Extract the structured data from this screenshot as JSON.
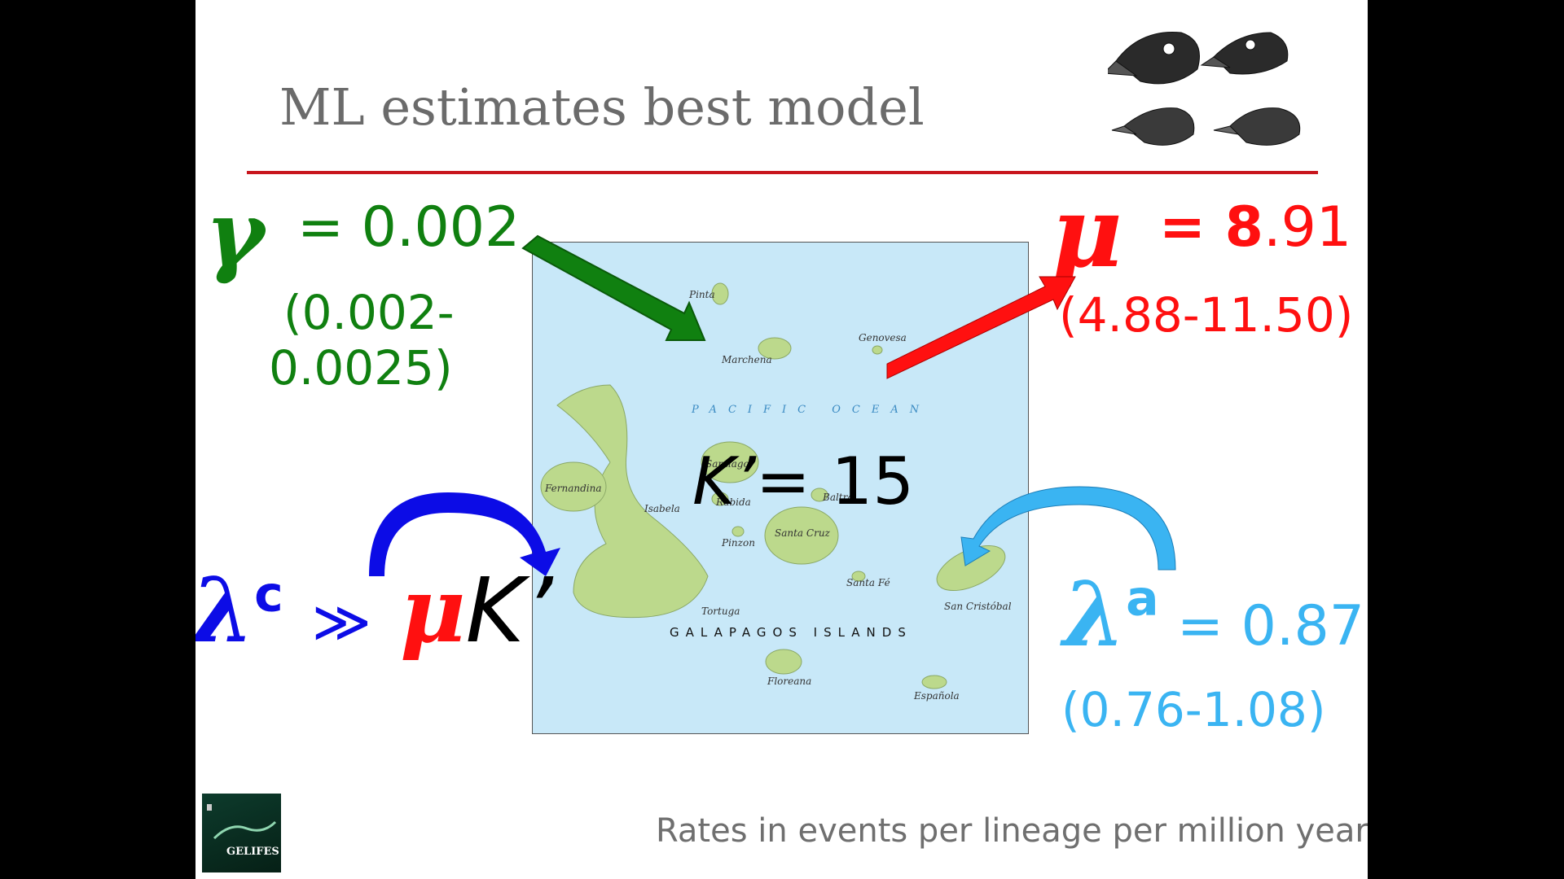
{
  "title": "ML estimates best model",
  "gamma": {
    "symbol": "γ",
    "eq": "= 0.002",
    "ci_line1": "(0.002-",
    "ci_line2": "0.0025)"
  },
  "mu": {
    "symbol": "μ",
    "eq_bold": "= 8",
    "eq_rest": ".91",
    "ci": "(4.88-11.50)"
  },
  "kprime": {
    "k": "K’",
    "eq": "= 15"
  },
  "lambda_c": {
    "symbol": "λ",
    "sup": "c",
    "rel": "≫",
    "mu": "μ",
    "k": "K’"
  },
  "lambda_a": {
    "symbol": "λ",
    "sup": "a",
    "eq": "= 0.87",
    "ci": "(0.76-1.08)"
  },
  "footer": "Rates in events per lineage per million year",
  "logo": {
    "name": "GELIFES"
  },
  "map": {
    "ocean": "PACIFIC OCEAN",
    "archipelago": "GALAPAGOS ISLANDS",
    "islands": [
      "Pinta",
      "Marchena",
      "Genovesa",
      "Fernandina",
      "Isabela",
      "Santiago",
      "Rabida",
      "Baltra",
      "Santa Cruz",
      "Pinzon",
      "Santa Fé",
      "San Cristóbal",
      "Tortuga",
      "Floreana",
      "Española"
    ]
  },
  "colors": {
    "green": "#108010",
    "red": "#ff1010",
    "blue": "#0c0ce6",
    "cyan": "#3ab4f2",
    "rule": "#c8161d"
  }
}
